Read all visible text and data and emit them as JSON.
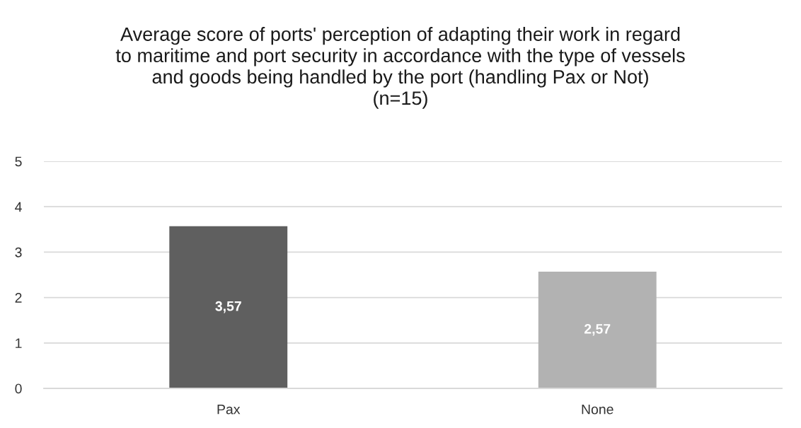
{
  "chart_data": {
    "type": "bar",
    "title": "Average score of ports' perception of adapting their work in regard\nto maritime and port security in accordance with the type of vessels\nand goods being handled by the port (handling Pax or Not)\n(n=15)",
    "categories": [
      "Pax",
      "None"
    ],
    "values": [
      3.57,
      2.57
    ],
    "colors": [
      "#5f5f5f",
      "#b2b2b2"
    ],
    "value_labels": [
      "3,57",
      "2,57"
    ],
    "ylim": [
      0,
      5
    ],
    "yticks": [
      0,
      1,
      2,
      3,
      4,
      5
    ],
    "grid": "y",
    "legend": false
  }
}
